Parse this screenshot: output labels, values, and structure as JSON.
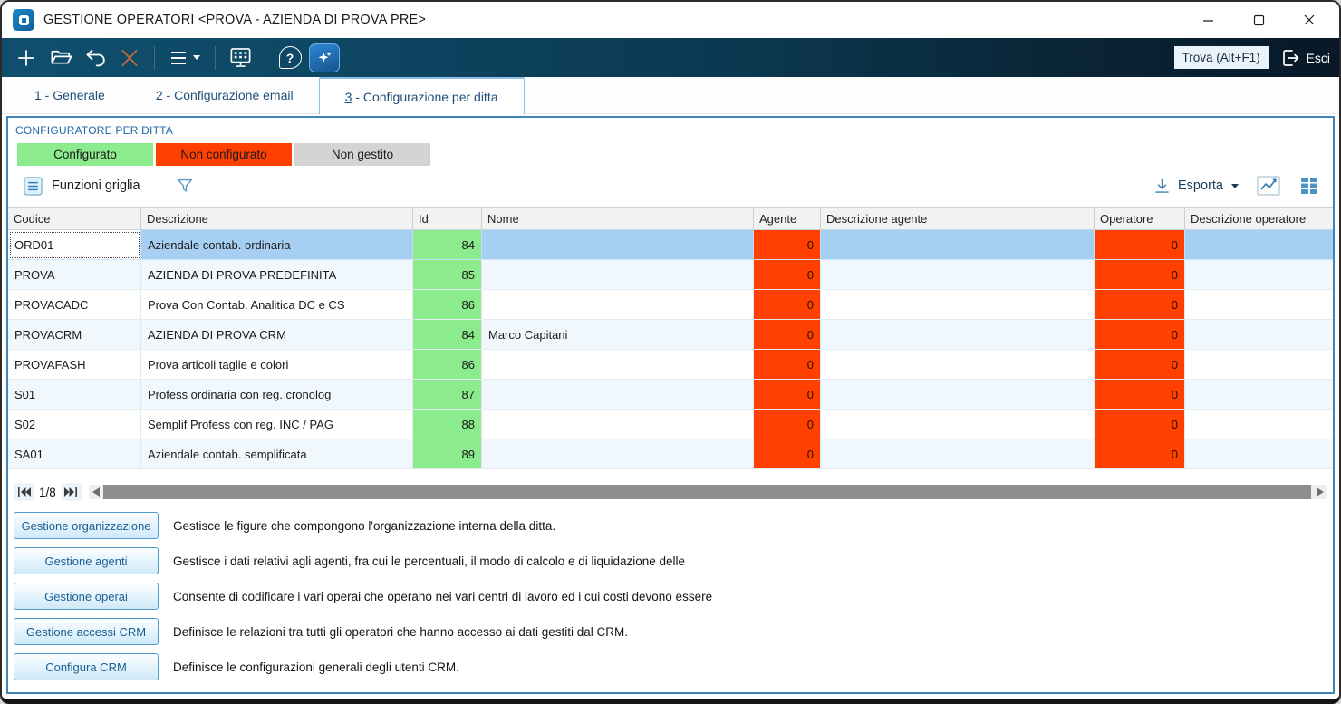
{
  "window": {
    "title": "GESTIONE OPERATORI <PROVA - AZIENDA DI PROVA PRE>"
  },
  "toolbar": {
    "find_value": "Trova (Alt+F1)",
    "exit_label": "Esci"
  },
  "icons": {
    "help_glyph": "?"
  },
  "tabs": [
    {
      "accel": "1",
      "rest": " - Generale",
      "active": false
    },
    {
      "accel": "2",
      "rest": " - Configurazione email",
      "active": false
    },
    {
      "accel": "3",
      "rest": " - Configurazione per ditta",
      "active": true
    }
  ],
  "panel": {
    "title": "CONFIGURATORE PER DITTA",
    "legend": [
      {
        "label": "Configurato",
        "color": "#8ceb8c"
      },
      {
        "label": "Non configurato",
        "color": "#ff4000"
      },
      {
        "label": "Non gestito",
        "color": "#d4d4d4"
      }
    ],
    "functions_label": "Funzioni griglia",
    "export_label": "Esporta"
  },
  "colors": {
    "configured": "#8ceb8c",
    "not_configured": "#ff4000",
    "not_managed": "#d4d4d4",
    "selected_row": "#a6cff2",
    "accent_blue": "#3e84b6"
  },
  "table": {
    "columns": [
      "Codice",
      "Descrizione",
      "Id",
      "Nome",
      "Agente",
      "Descrizione agente",
      "Operatore",
      "Descrizione operatore"
    ],
    "rows": [
      {
        "codice": "ORD01",
        "descrizione": "Aziendale contab. ordinaria",
        "id": "84",
        "nome": "",
        "agente": "0",
        "descrizione_agente": "",
        "operatore": "0",
        "descrizione_operatore": "",
        "selected": true
      },
      {
        "codice": "PROVA",
        "descrizione": "AZIENDA DI PROVA PREDEFINITA",
        "id": "85",
        "nome": "",
        "agente": "0",
        "descrizione_agente": "",
        "operatore": "0",
        "descrizione_operatore": "",
        "selected": false
      },
      {
        "codice": "PROVACADC",
        "descrizione": "Prova Con Contab. Analitica DC e CS",
        "id": "86",
        "nome": "",
        "agente": "0",
        "descrizione_agente": "",
        "operatore": "0",
        "descrizione_operatore": "",
        "selected": false
      },
      {
        "codice": "PROVACRM",
        "descrizione": "AZIENDA DI PROVA CRM",
        "id": "84",
        "nome": "Marco Capitani",
        "agente": "0",
        "descrizione_agente": "",
        "operatore": "0",
        "descrizione_operatore": "",
        "selected": false
      },
      {
        "codice": "PROVAFASH",
        "descrizione": "Prova articoli taglie e colori",
        "id": "86",
        "nome": "",
        "agente": "0",
        "descrizione_agente": "",
        "operatore": "0",
        "descrizione_operatore": "",
        "selected": false
      },
      {
        "codice": "S01",
        "descrizione": "Profess ordinaria con reg. cronolog",
        "id": "87",
        "nome": "",
        "agente": "0",
        "descrizione_agente": "",
        "operatore": "0",
        "descrizione_operatore": "",
        "selected": false
      },
      {
        "codice": "S02",
        "descrizione": "Semplif Profess con reg. INC / PAG",
        "id": "88",
        "nome": "",
        "agente": "0",
        "descrizione_agente": "",
        "operatore": "0",
        "descrizione_operatore": "",
        "selected": false
      },
      {
        "codice": "SA01",
        "descrizione": "Aziendale contab. semplificata",
        "id": "89",
        "nome": "",
        "agente": "0",
        "descrizione_agente": "",
        "operatore": "0",
        "descrizione_operatore": "",
        "selected": false
      }
    ]
  },
  "pagination": {
    "page_indicator": "1/8"
  },
  "actions": [
    {
      "button": "Gestione organizzazione",
      "description": "Gestisce le figure che compongono l'organizzazione interna della ditta."
    },
    {
      "button": "Gestione agenti",
      "description": "Gestisce i dati relativi agli agenti, fra cui le percentuali, il modo di calcolo e di liquidazione delle"
    },
    {
      "button": "Gestione operai",
      "description": "Consente di codificare i vari operai che operano nei vari centri di lavoro ed i cui costi devono essere"
    },
    {
      "button": "Gestione accessi CRM",
      "description": "Definisce le relazioni tra tutti gli operatori che hanno accesso ai dati gestiti dal CRM."
    },
    {
      "button": "Configura CRM",
      "description": "Definisce le configurazioni generali degli utenti CRM."
    }
  ]
}
